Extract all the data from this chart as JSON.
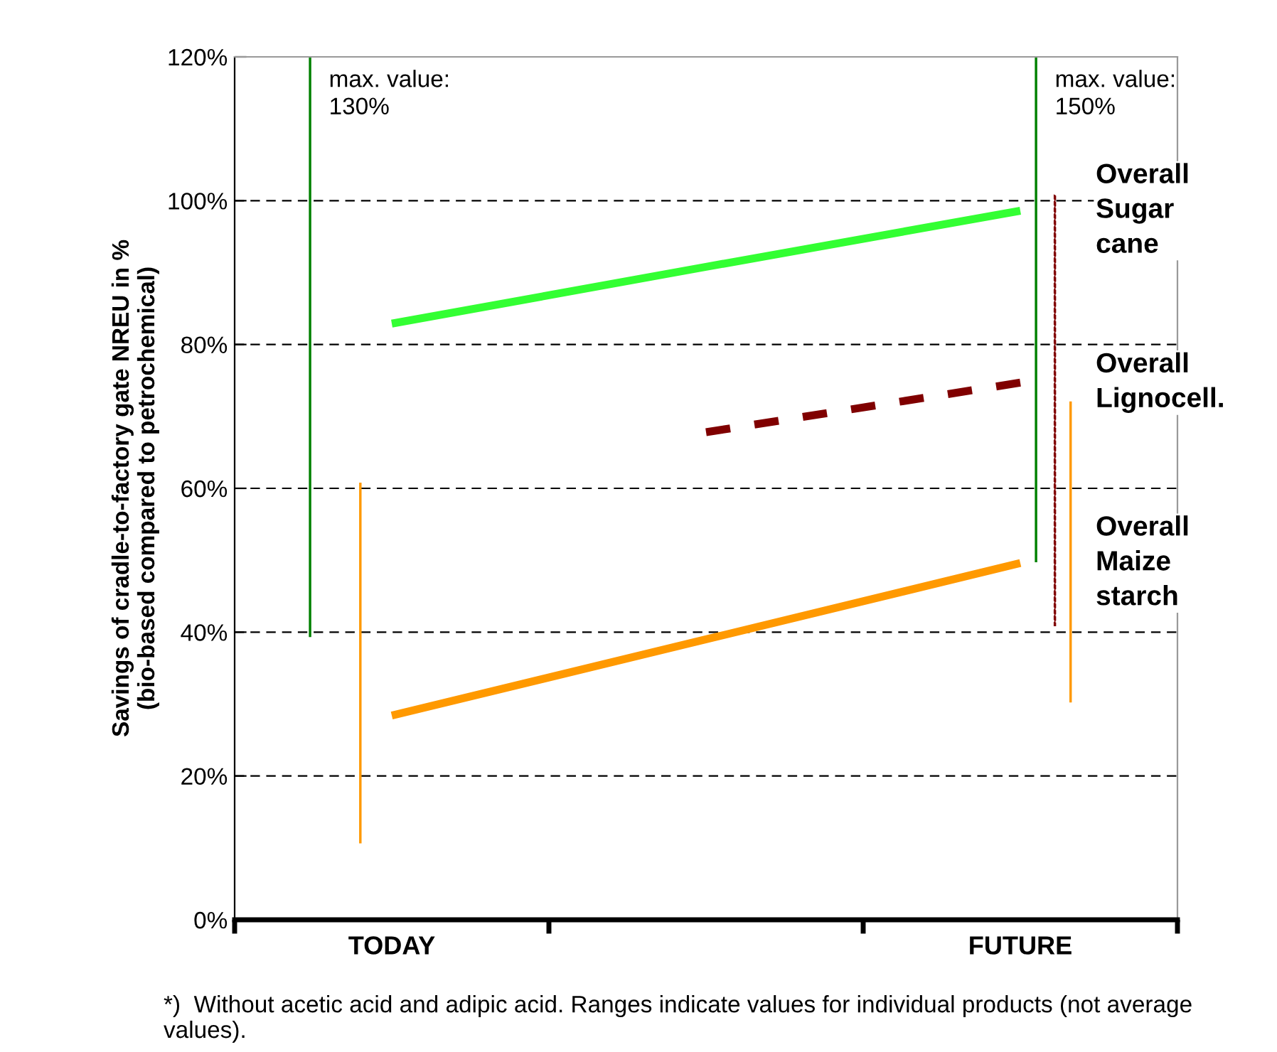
{
  "chart_data": {
    "type": "line",
    "ylabel": "Savings of cradle-to-factory gate NREU in %\n(bio-based compared to petrochemical)",
    "categories": [
      "TODAY",
      null,
      "FUTURE"
    ],
    "ylim": [
      0,
      120
    ],
    "yticks": [
      {
        "value": 0,
        "label": "0%"
      },
      {
        "value": 20,
        "label": "20%"
      },
      {
        "value": 40,
        "label": "40%"
      },
      {
        "value": 60,
        "label": "60%"
      },
      {
        "value": 80,
        "label": "80%"
      },
      {
        "value": 100,
        "label": "100%"
      },
      {
        "value": 120,
        "label": "120%"
      }
    ],
    "grid": "y",
    "legend": false,
    "series": [
      {
        "name": "Overall\nSugar\ncane",
        "color": "#33ff33",
        "values": [
          82.9,
          90.8,
          98.6
        ],
        "line_style": "solid"
      },
      {
        "name": "Overall\nLignocell.",
        "color": "#800000",
        "values": [
          null,
          67.8,
          74.7
        ],
        "line_style": "dashed"
      },
      {
        "name": "Overall\nMaize\nstarch",
        "color": "#ff9900",
        "values": [
          28.4,
          39.0,
          49.6
        ],
        "line_style": "solid"
      },
      {
        "type": "bar",
        "color": "#008000",
        "base": [
          39.4,
          null,
          49.8
        ],
        "values": [
          80.6,
          null,
          70.2
        ],
        "line_style": "solid"
      },
      {
        "type": "bar",
        "color": "#800000",
        "base": [
          null,
          null,
          40.9
        ],
        "values": [
          null,
          null,
          59.9
        ],
        "line_style": "dashed"
      },
      {
        "type": "bar",
        "color": "#ff9900",
        "base": [
          10.7,
          null,
          30.3
        ],
        "values": [
          50.0,
          null,
          41.7
        ],
        "line_style": "solid"
      }
    ],
    "annotations": [
      "max. value:\n130%",
      "max. value:\n150%",
      "*)  Without acetic acid and adipic acid. Ranges indicate values for individual products (not average values)."
    ]
  }
}
